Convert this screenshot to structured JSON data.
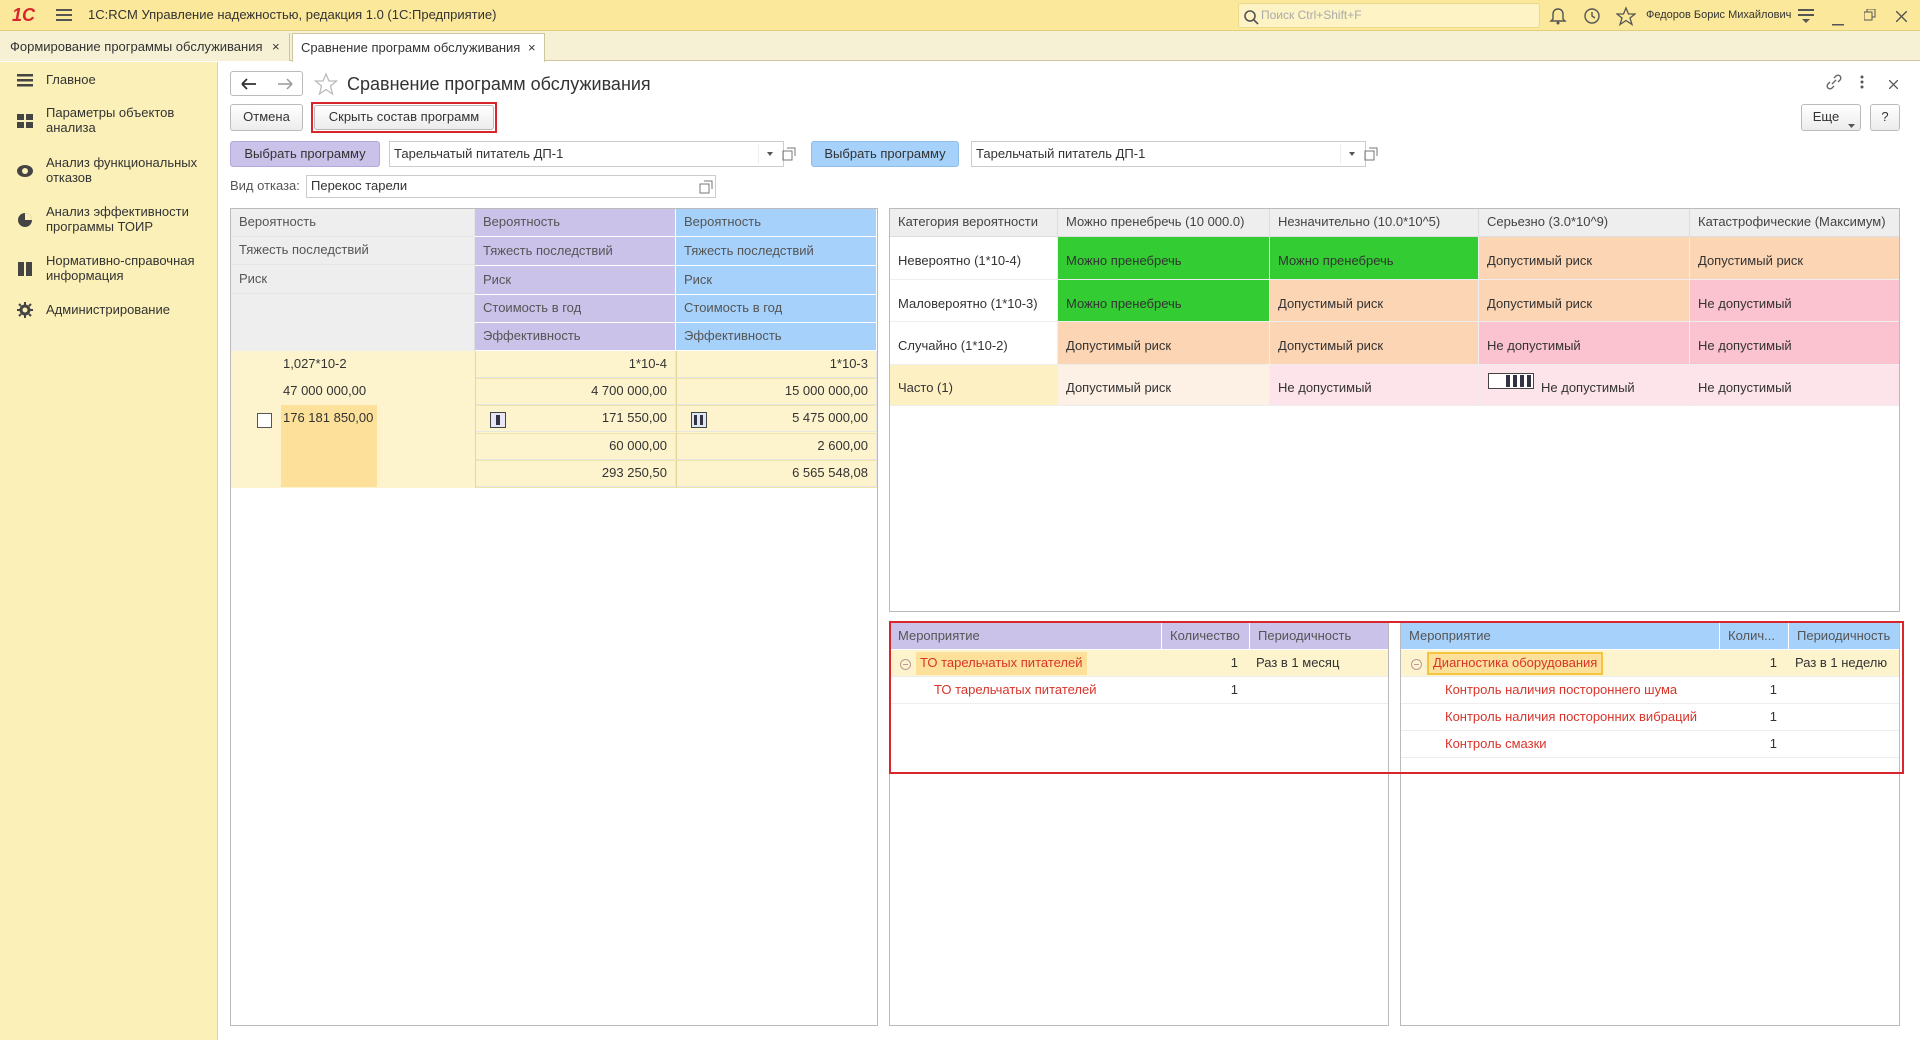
{
  "app": {
    "logo": "1С",
    "title": "1С:RCM Управление надежностью, редакция 1.0  (1С:Предприятие)",
    "search_placeholder": "Поиск Ctrl+Shift+F",
    "user": "Федоров Борис Михайлович"
  },
  "tabs": [
    "Формирование программы обслуживания",
    "Сравнение программ обслуживания"
  ],
  "sidebar": [
    "Главное",
    "Параметры объектов анализа",
    "Анализ функциональных отказов",
    "Анализ эффективности программы ТОИР",
    "Нормативно-справочная информация",
    "Администрирование"
  ],
  "form": {
    "title": "Сравнение программ обслуживания",
    "cancel": "Отмена",
    "hide_programs": "Скрыть состав программ",
    "more": "Еще",
    "help": "?",
    "select_left": "Выбрать программу",
    "program_left": "Тарельчатый питатель ДП-1",
    "select_right": "Выбрать программу",
    "program_right": "Тарельчатый питатель ДП-1",
    "failure_label": "Вид отказа:",
    "failure_value": "Перекос тарели"
  },
  "comparison": {
    "base_headers": [
      "Вероятность",
      "Тяжесть последствий",
      "Риск"
    ],
    "left_headers": [
      "Вероятность",
      "Тяжесть последствий",
      "Риск",
      "Стоимость в год",
      "Эффективность"
    ],
    "right_headers": [
      "Вероятность",
      "Тяжесть последствий",
      "Риск",
      "Стоимость в год",
      "Эффективность"
    ],
    "base_values": [
      "1,027*10-2",
      "47 000 000,00",
      "176 181 850,00"
    ],
    "left_values": [
      "1*10-4",
      "4 700 000,00",
      "171 550,00",
      "60 000,00",
      "293 250,50"
    ],
    "right_values": [
      "1*10-3",
      "15 000 000,00",
      "5 475 000,00",
      "2 600,00",
      "6 565 548,08"
    ]
  },
  "risk_matrix": {
    "columns": [
      "Категория вероятности",
      "Можно пренебречь (10 000.0)",
      "Незначительно (10.0*10^5)",
      "Серьезно (3.0*10^9)",
      "Катастрофические (Максимум)"
    ],
    "rows": [
      [
        "Невероятно (1*10-4)",
        "Можно пренебречь",
        "Можно пренебречь",
        "Допустимый риск",
        "Допустимый риск"
      ],
      [
        "Маловероятно (1*10-3)",
        "Можно пренебречь",
        "Допустимый риск",
        "Допустимый риск",
        "Не допустимый"
      ],
      [
        "Случайно (1*10-2)",
        "Допустимый риск",
        "Допустимый риск",
        "Не допустимый",
        "Не допустимый"
      ],
      [
        "Часто (1)",
        "Допустимый риск",
        "Не допустимый",
        "Не допустимый",
        "Не допустимый"
      ]
    ]
  },
  "measures_left": {
    "columns": [
      "Мероприятие",
      "Количество",
      "Периодичность"
    ],
    "rows": [
      {
        "name": "ТО тарельчатых питателей",
        "qty": 1,
        "period": "Раз в 1 месяц"
      },
      {
        "name": "ТО тарельчатых питателей",
        "qty": 1
      }
    ]
  },
  "measures_right": {
    "columns": [
      "Мероприятие",
      "Колич...",
      "Периодичность"
    ],
    "rows": [
      {
        "name": "Диагностика оборудования",
        "qty": 1,
        "period": "Раз в 1 неделю"
      },
      {
        "name": "Контроль наличия постороннего шума",
        "qty": 1
      },
      {
        "name": "Контроль наличия посторонних вибраций",
        "qty": 1
      },
      {
        "name": "Контроль смазки",
        "qty": 1
      }
    ]
  }
}
